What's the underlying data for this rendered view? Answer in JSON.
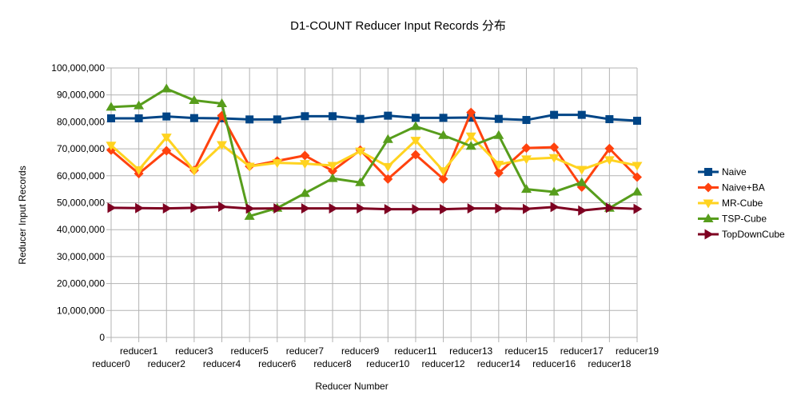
{
  "chart_data": {
    "type": "line",
    "title": "D1-COUNT Reducer Input Records  分布",
    "xlabel": "Reducer Number",
    "ylabel": "Reducer Input Records",
    "ylim": [
      0,
      100000000
    ],
    "y_ticks": [
      "0",
      "10,000,000",
      "20,000,000",
      "30,000,000",
      "40,000,000",
      "50,000,000",
      "60,000,000",
      "70,000,000",
      "80,000,000",
      "90,000,000",
      "100,000,000"
    ],
    "categories": [
      "reducer0",
      "reducer1",
      "reducer2",
      "reducer3",
      "reducer4",
      "reducer5",
      "reducer6",
      "reducer7",
      "reducer8",
      "reducer9",
      "reducer10",
      "reducer11",
      "reducer12",
      "reducer13",
      "reducer14",
      "reducer15",
      "reducer16",
      "reducer17",
      "reducer18",
      "reducer19"
    ],
    "grid": true,
    "legend_position": "right",
    "series": [
      {
        "name": "Naive",
        "color": "#004586",
        "marker": "square",
        "values": [
          81300000,
          81300000,
          82000000,
          81400000,
          81300000,
          80900000,
          80900000,
          82100000,
          82100000,
          81100000,
          82300000,
          81500000,
          81500000,
          81600000,
          81100000,
          80700000,
          82600000,
          82600000,
          81000000,
          80400000
        ]
      },
      {
        "name": "Naive+BA",
        "color": "#ff420e",
        "marker": "diamond",
        "values": [
          69500000,
          60800000,
          69300000,
          62000000,
          82300000,
          63500000,
          65500000,
          67500000,
          61800000,
          69500000,
          58800000,
          67800000,
          58800000,
          83500000,
          61000000,
          70300000,
          70600000,
          55800000,
          70100000,
          59500000
        ]
      },
      {
        "name": "MR-Cube",
        "color": "#ffd320",
        "marker": "triangle-down",
        "values": [
          71300000,
          62200000,
          74300000,
          61900000,
          71500000,
          63500000,
          64800000,
          64500000,
          63800000,
          69100000,
          63400000,
          73100000,
          61800000,
          74700000,
          64200000,
          66200000,
          66700000,
          62300000,
          65900000,
          63800000
        ]
      },
      {
        "name": "TSP-Cube",
        "color": "#579d1c",
        "marker": "triangle-up",
        "values": [
          85500000,
          86000000,
          92300000,
          88000000,
          86800000,
          45000000,
          48000000,
          53500000,
          59000000,
          57500000,
          73500000,
          78300000,
          75000000,
          71000000,
          75000000,
          55000000,
          54000000,
          57500000,
          48000000,
          54000000
        ]
      },
      {
        "name": "TopDownCube",
        "color": "#7e0021",
        "marker": "triangle-right",
        "values": [
          48100000,
          48000000,
          47900000,
          48100000,
          48500000,
          47800000,
          47900000,
          47900000,
          47900000,
          47900000,
          47600000,
          47600000,
          47600000,
          47900000,
          47900000,
          47700000,
          48400000,
          47100000,
          48100000,
          47700000
        ]
      }
    ]
  }
}
